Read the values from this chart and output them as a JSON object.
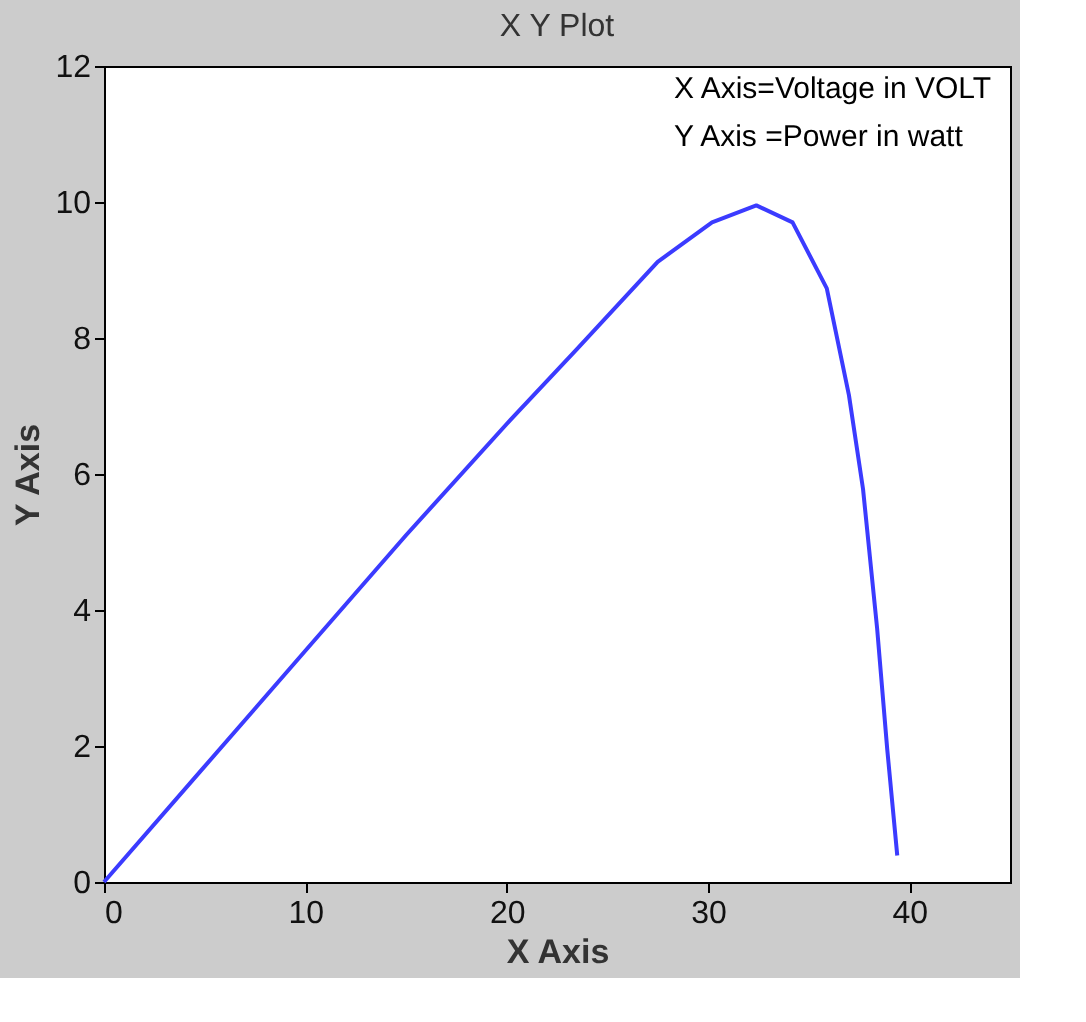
{
  "chart_data": {
    "type": "line",
    "title": "X Y Plot",
    "xlabel": "X Axis",
    "ylabel": "Y Axis",
    "annotations": [
      "X Axis=Voltage in VOLT",
      "Y Axis =Power in watt"
    ],
    "x": [
      0,
      5,
      10,
      15,
      20.2,
      23.5,
      27.5,
      30.2,
      32.4,
      34.2,
      35.9,
      37.0,
      37.7,
      38.4,
      38.9,
      39.4
    ],
    "series": [
      {
        "color": "#3b3bff",
        "values": [
          0,
          1.7,
          3.4,
          5.1,
          6.8,
          7.84,
          9.12,
          9.7,
          9.95,
          9.7,
          8.73,
          7.16,
          5.78,
          3.73,
          1.96,
          0.39
        ]
      }
    ],
    "xlim": [
      0,
      45
    ],
    "ylim": [
      0,
      12
    ],
    "xticks": [
      0,
      10,
      20,
      30,
      40
    ],
    "yticks": [
      0,
      2,
      4,
      6,
      8,
      10,
      12
    ],
    "grid": false,
    "marker": "none",
    "line_style": "solid"
  }
}
